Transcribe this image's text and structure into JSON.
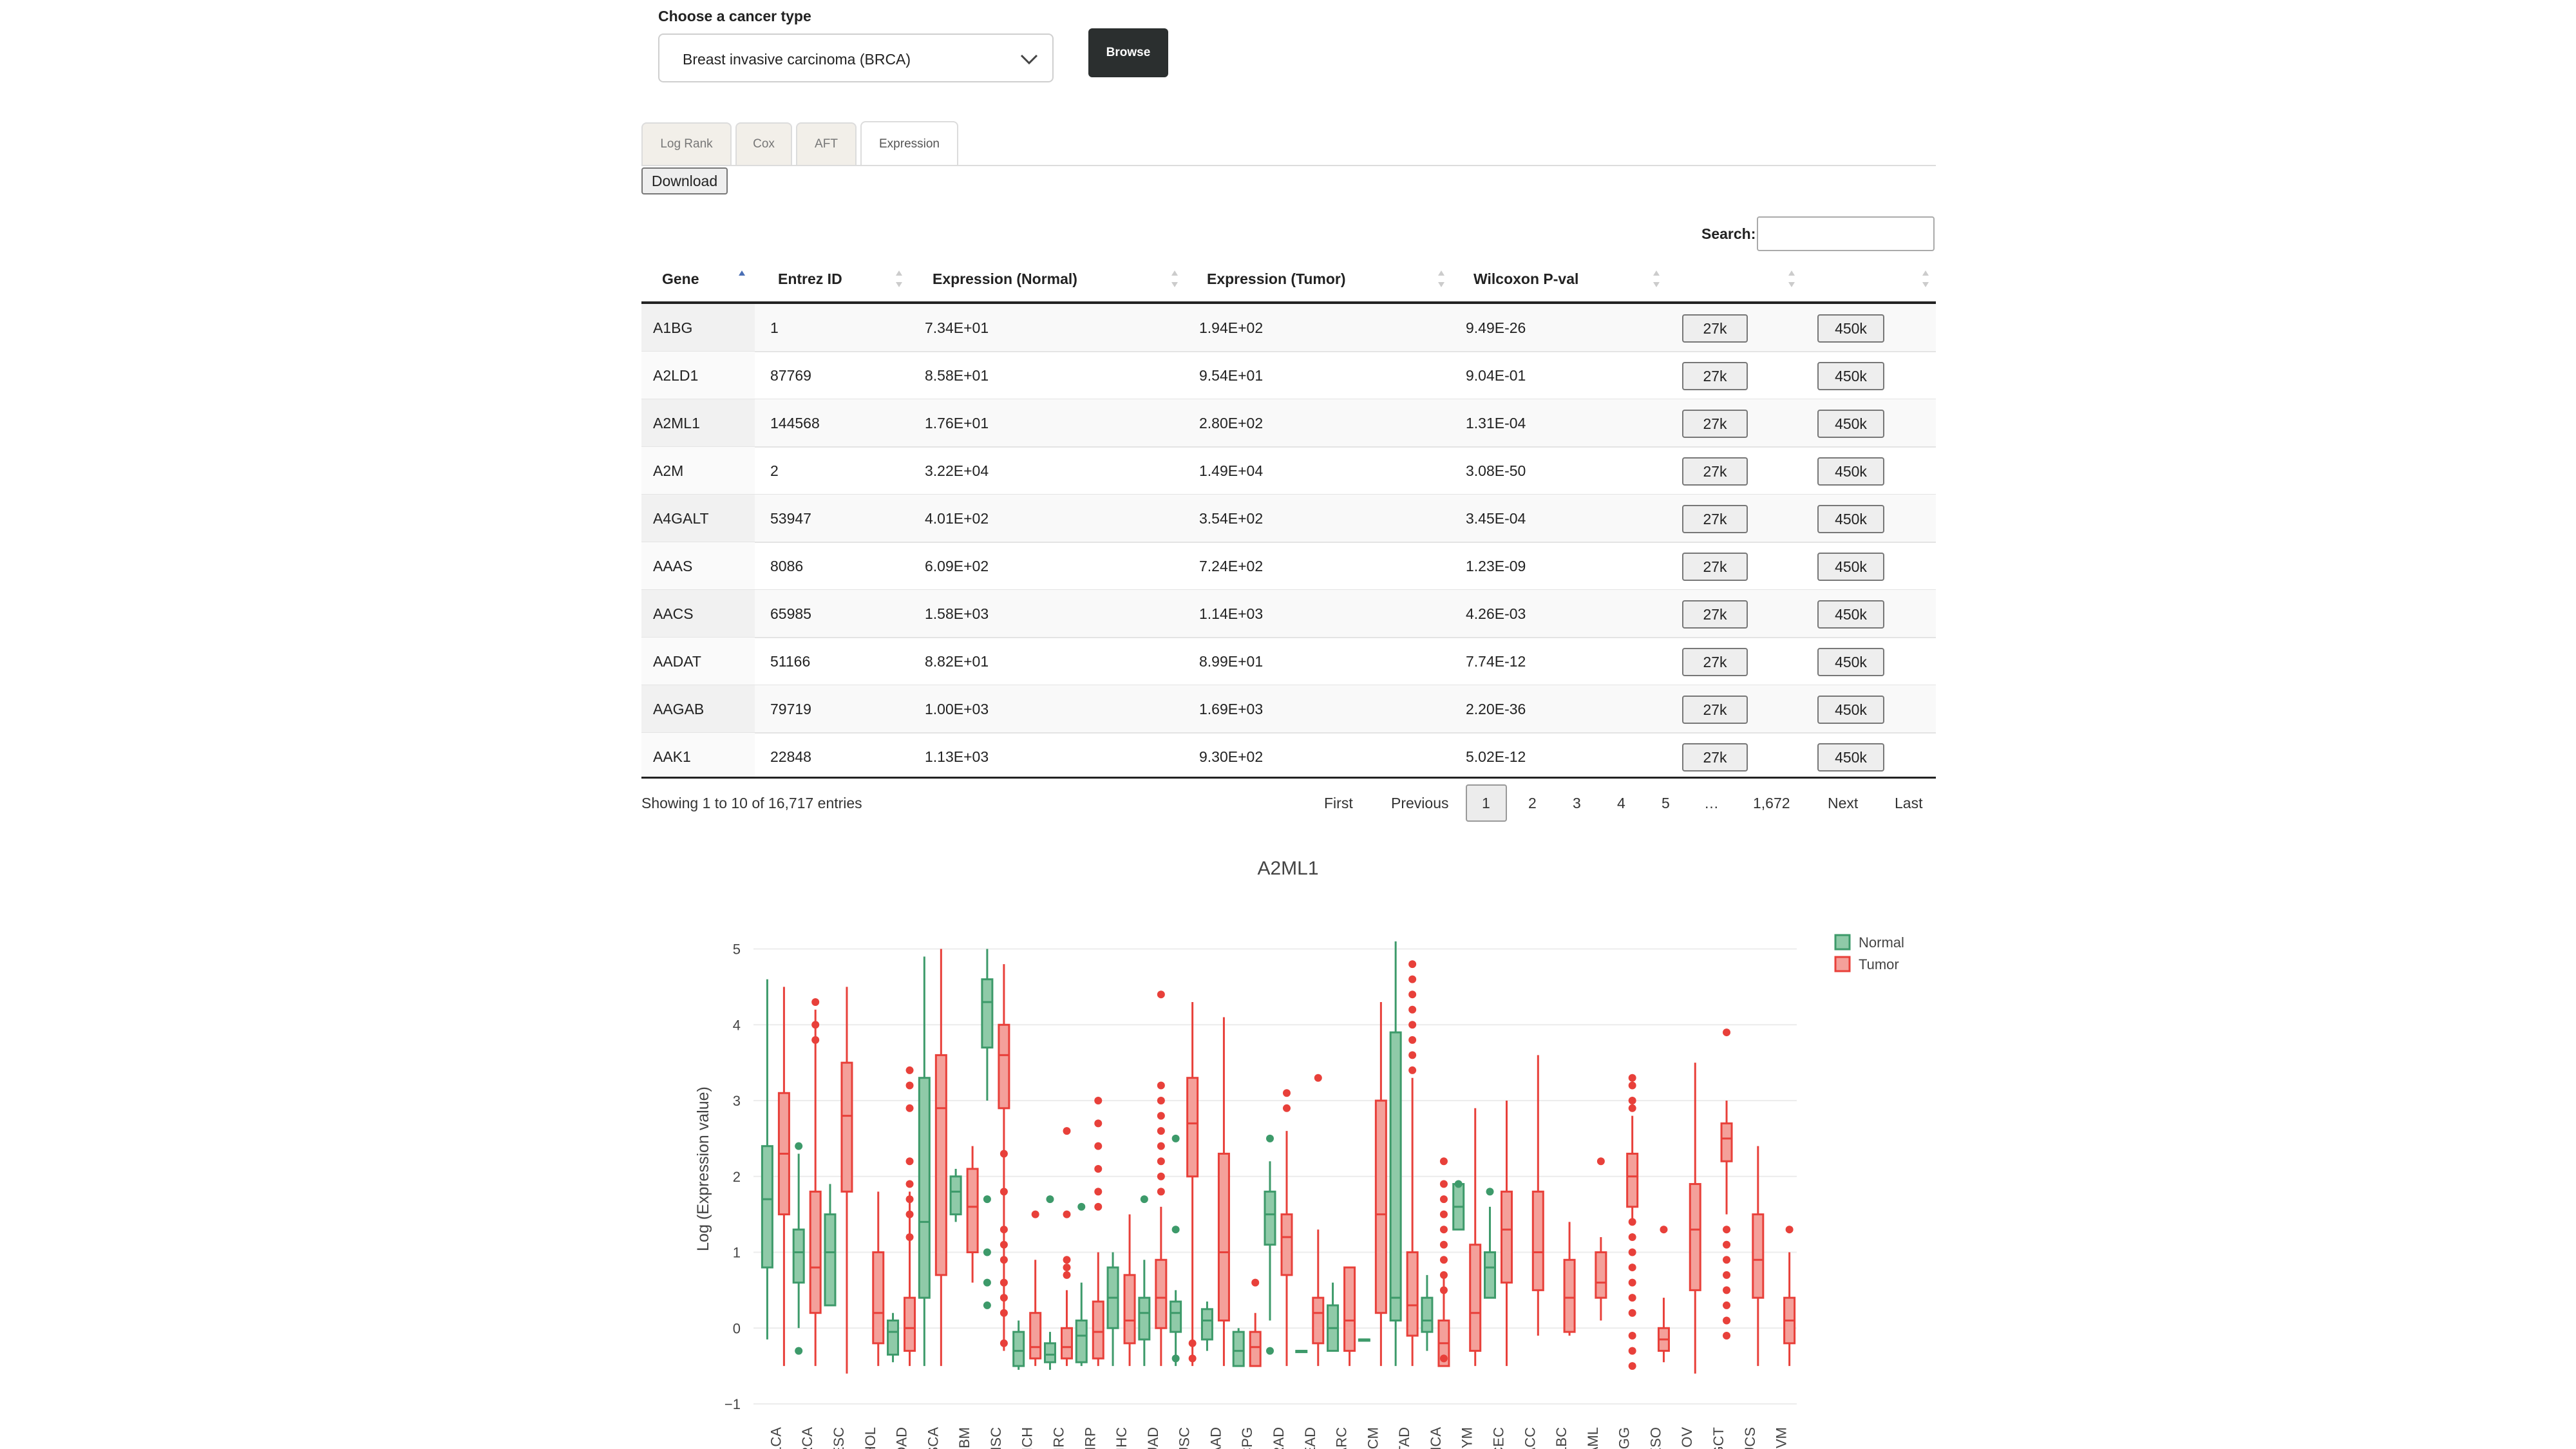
{
  "form": {
    "label": "Choose a cancer type",
    "selected": "Breast invasive carcinoma (BRCA)",
    "browse_label": "Browse"
  },
  "tabs": [
    "Log Rank",
    "Cox",
    "AFT",
    "Expression"
  ],
  "active_tab": "Expression",
  "download_label": "Download",
  "search": {
    "label": "Search:",
    "value": ""
  },
  "table": {
    "columns": [
      "Gene",
      "Entrez ID",
      "Expression (Normal)",
      "Expression (Tumor)",
      "Wilcoxon P-val",
      "",
      ""
    ],
    "rows": [
      [
        "A1BG",
        "1",
        "7.34E+01",
        "1.94E+02",
        "9.49E-26",
        "27k",
        "450k"
      ],
      [
        "A2LD1",
        "87769",
        "8.58E+01",
        "9.54E+01",
        "9.04E-01",
        "27k",
        "450k"
      ],
      [
        "A2ML1",
        "144568",
        "1.76E+01",
        "2.80E+02",
        "1.31E-04",
        "27k",
        "450k"
      ],
      [
        "A2M",
        "2",
        "3.22E+04",
        "1.49E+04",
        "3.08E-50",
        "27k",
        "450k"
      ],
      [
        "A4GALT",
        "53947",
        "4.01E+02",
        "3.54E+02",
        "3.45E-04",
        "27k",
        "450k"
      ],
      [
        "AAAS",
        "8086",
        "6.09E+02",
        "7.24E+02",
        "1.23E-09",
        "27k",
        "450k"
      ],
      [
        "AACS",
        "65985",
        "1.58E+03",
        "1.14E+03",
        "4.26E-03",
        "27k",
        "450k"
      ],
      [
        "AADAT",
        "51166",
        "8.82E+01",
        "8.99E+01",
        "7.74E-12",
        "27k",
        "450k"
      ],
      [
        "AAGAB",
        "79719",
        "1.00E+03",
        "1.69E+03",
        "2.20E-36",
        "27k",
        "450k"
      ],
      [
        "AAK1",
        "22848",
        "1.13E+03",
        "9.30E+02",
        "5.02E-12",
        "27k",
        "450k"
      ]
    ],
    "sort_column": "Gene",
    "info": "Showing 1 to 10 of 16,717 entries"
  },
  "pagination": {
    "first": "First",
    "previous": "Previous",
    "pages": [
      "1",
      "2",
      "3",
      "4",
      "5",
      "…",
      "1,672"
    ],
    "current": "1",
    "next": "Next",
    "last": "Last"
  },
  "chart_data": {
    "type": "box",
    "title": "A2ML1",
    "ylabel": "Log (Expression value)",
    "ylim": [
      -1,
      5.2
    ],
    "yticks": [
      -1,
      0,
      1,
      2,
      3,
      4,
      5
    ],
    "grid": true,
    "legend_placement": "top-right",
    "series": [
      {
        "name": "Normal",
        "color": "#3d9a6a",
        "fill": "#8fcaa8"
      },
      {
        "name": "Tumor",
        "color": "#e8403a",
        "fill": "#f4a09a"
      }
    ],
    "categories": [
      "BLCA",
      "BRCA",
      "CESC",
      "CHOL",
      "COAD",
      "ESCA",
      "GBM",
      "HNSC",
      "KICH",
      "KIRC",
      "KIRP",
      "LIHC",
      "LUAD",
      "LUSC",
      "PAAD",
      "PCPG",
      "PRAD",
      "READ",
      "SARC",
      "SKCM",
      "STAD",
      "THCA",
      "THYM",
      "UCEC",
      "ACC",
      "DLBC",
      "LAML",
      "LGG",
      "MESO",
      "OV",
      "TGCT",
      "UCS",
      "UVM"
    ],
    "boxes": [
      {
        "cat": "BLCA",
        "normal": [
          -0.15,
          0.8,
          1.7,
          2.4,
          4.6
        ],
        "tumor": [
          -0.5,
          1.5,
          2.3,
          3.1,
          4.5
        ]
      },
      {
        "cat": "BRCA",
        "normal": [
          0.0,
          0.6,
          1.0,
          1.3,
          2.3
        ],
        "tumor": [
          -0.5,
          0.2,
          0.8,
          1.8,
          4.2
        ]
      },
      {
        "cat": "CESC",
        "normal": [
          0.3,
          0.3,
          1.0,
          1.5,
          1.9
        ],
        "tumor": [
          -0.6,
          1.8,
          2.8,
          3.5,
          4.5
        ]
      },
      {
        "cat": "CHOL",
        "normal": null,
        "tumor": [
          -0.5,
          -0.2,
          0.2,
          1.0,
          1.8
        ]
      },
      {
        "cat": "COAD",
        "normal": [
          -0.45,
          -0.35,
          -0.05,
          0.1,
          0.2
        ],
        "tumor": [
          -0.5,
          -0.3,
          0.0,
          0.4,
          1.8
        ]
      },
      {
        "cat": "ESCA",
        "normal": [
          -0.5,
          0.4,
          1.4,
          3.3,
          4.9
        ],
        "tumor": [
          -0.5,
          0.7,
          2.9,
          3.6,
          5.0
        ]
      },
      {
        "cat": "GBM",
        "normal": [
          1.4,
          1.5,
          1.8,
          2.0,
          2.1
        ],
        "tumor": [
          0.6,
          1.0,
          1.6,
          2.1,
          2.4
        ]
      },
      {
        "cat": "HNSC",
        "normal": [
          3.0,
          3.7,
          4.3,
          4.6,
          5.0
        ],
        "tumor": [
          -0.3,
          2.9,
          3.6,
          4.0,
          4.8
        ]
      },
      {
        "cat": "KICH",
        "normal": [
          -0.55,
          -0.5,
          -0.3,
          -0.05,
          0.1
        ],
        "tumor": [
          -0.5,
          -0.4,
          -0.25,
          0.2,
          0.9
        ]
      },
      {
        "cat": "KIRC",
        "normal": [
          -0.55,
          -0.45,
          -0.35,
          -0.2,
          -0.05
        ],
        "tumor": [
          -0.5,
          -0.4,
          -0.25,
          0.0,
          0.5
        ]
      },
      {
        "cat": "KIRP",
        "normal": [
          -0.5,
          -0.45,
          -0.1,
          0.1,
          0.6
        ],
        "tumor": [
          -0.5,
          -0.4,
          -0.05,
          0.35,
          1.0
        ]
      },
      {
        "cat": "LIHC",
        "normal": [
          -0.5,
          0.0,
          0.4,
          0.8,
          1.0
        ],
        "tumor": [
          -0.5,
          -0.2,
          0.1,
          0.7,
          1.5
        ]
      },
      {
        "cat": "LUAD",
        "normal": [
          -0.5,
          -0.15,
          0.2,
          0.4,
          0.9
        ],
        "tumor": [
          -0.5,
          0.0,
          0.4,
          0.9,
          1.6
        ]
      },
      {
        "cat": "LUSC",
        "normal": [
          -0.5,
          -0.05,
          0.2,
          0.35,
          0.5
        ],
        "tumor": [
          -0.5,
          2.0,
          2.7,
          3.3,
          4.3
        ]
      },
      {
        "cat": "PAAD",
        "normal": [
          -0.3,
          -0.15,
          0.1,
          0.25,
          0.35
        ],
        "tumor": [
          -0.5,
          0.1,
          1.0,
          2.3,
          4.1
        ]
      },
      {
        "cat": "PCPG",
        "normal": [
          -0.5,
          -0.5,
          -0.3,
          -0.05,
          0.0
        ],
        "tumor": [
          -0.5,
          -0.5,
          -0.25,
          -0.05,
          0.2
        ]
      },
      {
        "cat": "PRAD",
        "normal": [
          0.1,
          1.1,
          1.5,
          1.8,
          2.2
        ],
        "tumor": [
          -0.5,
          0.7,
          1.2,
          1.5,
          2.6
        ]
      },
      {
        "cat": "READ",
        "normal": [
          -0.3,
          -0.3,
          -0.3,
          -0.3,
          -0.3
        ],
        "tumor": [
          -0.5,
          -0.2,
          0.2,
          0.4,
          1.3
        ]
      },
      {
        "cat": "SARC",
        "normal": [
          -0.3,
          -0.3,
          0.0,
          0.3,
          0.6
        ],
        "tumor": [
          -0.5,
          -0.3,
          0.1,
          0.8,
          0.8
        ]
      },
      {
        "cat": "SKCM",
        "normal": [
          -0.15,
          -0.15,
          -0.15,
          -0.15,
          -0.15
        ],
        "tumor": [
          -0.5,
          0.2,
          1.5,
          3.0,
          4.3
        ]
      },
      {
        "cat": "STAD",
        "normal": [
          -0.5,
          0.1,
          0.4,
          3.9,
          5.1
        ],
        "tumor": [
          -0.5,
          -0.1,
          0.3,
          1.0,
          3.3
        ]
      },
      {
        "cat": "THCA",
        "normal": [
          -0.3,
          -0.05,
          0.1,
          0.4,
          0.7
        ],
        "tumor": [
          -0.5,
          -0.5,
          -0.2,
          0.1,
          0.7
        ]
      },
      {
        "cat": "THYM",
        "normal": [
          1.3,
          1.3,
          1.6,
          1.9,
          1.9
        ],
        "tumor": [
          -0.5,
          -0.3,
          0.2,
          1.1,
          2.9
        ]
      },
      {
        "cat": "UCEC",
        "normal": [
          0.4,
          0.4,
          0.8,
          1.0,
          1.6
        ],
        "tumor": [
          -0.5,
          0.6,
          1.3,
          1.8,
          3.0
        ]
      },
      {
        "cat": "ACC",
        "normal": null,
        "tumor": [
          -0.1,
          0.5,
          1.0,
          1.8,
          3.6
        ]
      },
      {
        "cat": "DLBC",
        "normal": null,
        "tumor": [
          -0.1,
          -0.05,
          0.4,
          0.9,
          1.4
        ]
      },
      {
        "cat": "LAML",
        "normal": null,
        "tumor": [
          0.1,
          0.4,
          0.6,
          1.0,
          1.2
        ]
      },
      {
        "cat": "LGG",
        "normal": [],
        "tumor": [
          1.4,
          1.6,
          2.0,
          2.3,
          2.8
        ]
      },
      {
        "cat": "MESO",
        "normal": null,
        "tumor": [
          -0.45,
          -0.3,
          -0.15,
          0.0,
          0.4
        ]
      },
      {
        "cat": "OV",
        "normal": null,
        "tumor": [
          -0.6,
          0.5,
          1.3,
          1.9,
          3.5
        ]
      },
      {
        "cat": "TGCT",
        "normal": null,
        "tumor": [
          1.5,
          2.2,
          2.5,
          2.7,
          3.0
        ]
      },
      {
        "cat": "UCS",
        "normal": null,
        "tumor": [
          -0.5,
          0.4,
          0.9,
          1.5,
          2.4
        ]
      },
      {
        "cat": "UVM",
        "normal": null,
        "tumor": [
          -0.5,
          -0.2,
          0.1,
          0.4,
          1.0
        ]
      }
    ],
    "outliers": [
      {
        "cat": "BRCA",
        "series": "normal",
        "y": [
          2.4,
          -0.3
        ]
      },
      {
        "cat": "BRCA",
        "series": "tumor",
        "y": [
          4.3,
          4.0,
          3.8
        ]
      },
      {
        "cat": "COAD",
        "series": "tumor",
        "y": [
          3.4,
          3.2,
          2.9,
          2.2,
          1.9,
          1.7,
          1.5,
          1.2
        ]
      },
      {
        "cat": "HNSC",
        "series": "normal",
        "y": [
          1.7,
          1.0,
          0.6,
          0.3
        ]
      },
      {
        "cat": "HNSC",
        "series": "tumor",
        "y": [
          2.3,
          1.8,
          1.3,
          1.1,
          0.9,
          0.6,
          0.4,
          0.2,
          -0.2
        ]
      },
      {
        "cat": "KICH",
        "series": "tumor",
        "y": [
          1.5
        ]
      },
      {
        "cat": "KIRC",
        "series": "normal",
        "y": [
          1.7
        ]
      },
      {
        "cat": "KIRC",
        "series": "tumor",
        "y": [
          2.6,
          1.5,
          0.9,
          0.8,
          0.7
        ]
      },
      {
        "cat": "KIRP",
        "series": "normal",
        "y": [
          1.6
        ]
      },
      {
        "cat": "KIRP",
        "series": "tumor",
        "y": [
          3.0,
          2.7,
          2.4,
          2.1,
          1.8,
          1.6
        ]
      },
      {
        "cat": "LUAD",
        "series": "normal",
        "y": [
          1.7
        ]
      },
      {
        "cat": "LUAD",
        "series": "tumor",
        "y": [
          4.4,
          3.2,
          3.0,
          2.8,
          2.6,
          2.4,
          2.2,
          2.0,
          1.8
        ]
      },
      {
        "cat": "LUSC",
        "series": "normal",
        "y": [
          2.5,
          1.3,
          -0.4
        ]
      },
      {
        "cat": "LUSC",
        "series": "tumor",
        "y": [
          -0.2,
          -0.4
        ]
      },
      {
        "cat": "PCPG",
        "series": "tumor",
        "y": [
          0.6
        ]
      },
      {
        "cat": "PRAD",
        "series": "normal",
        "y": [
          2.5,
          -0.3
        ]
      },
      {
        "cat": "PRAD",
        "series": "tumor",
        "y": [
          3.1,
          2.9
        ]
      },
      {
        "cat": "READ",
        "series": "tumor",
        "y": [
          3.3
        ]
      },
      {
        "cat": "STAD",
        "series": "tumor",
        "y": [
          4.8,
          4.6,
          4.4,
          4.2,
          4.0,
          3.8,
          3.6,
          3.4
        ]
      },
      {
        "cat": "THCA",
        "series": "tumor",
        "y": [
          2.2,
          1.9,
          1.7,
          1.5,
          1.3,
          1.1,
          0.9,
          0.7,
          0.5,
          -0.4
        ]
      },
      {
        "cat": "THYM",
        "series": "normal",
        "y": [
          1.9
        ]
      },
      {
        "cat": "UCEC",
        "series": "normal",
        "y": [
          1.8
        ]
      },
      {
        "cat": "LAML",
        "series": "tumor",
        "y": [
          2.2
        ]
      },
      {
        "cat": "LGG",
        "series": "tumor",
        "y": [
          3.3,
          3.2,
          3.0,
          2.9,
          1.4,
          1.2,
          1.0,
          0.8,
          0.6,
          0.4,
          0.2,
          -0.1,
          -0.3,
          -0.5
        ]
      },
      {
        "cat": "MESO",
        "series": "tumor",
        "y": [
          1.3
        ]
      },
      {
        "cat": "TGCT",
        "series": "tumor",
        "y": [
          3.9,
          1.3,
          1.1,
          0.9,
          0.7,
          0.5,
          0.3,
          0.1,
          -0.1
        ]
      },
      {
        "cat": "UVM",
        "series": "tumor",
        "y": [
          1.3
        ]
      }
    ]
  }
}
